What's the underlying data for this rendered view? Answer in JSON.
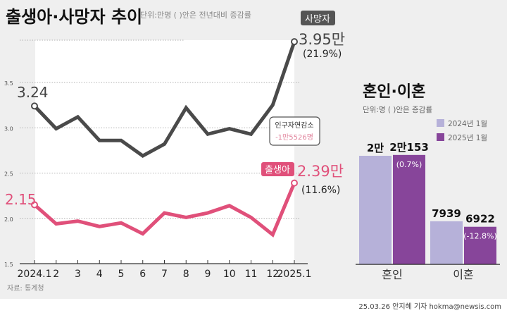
{
  "chart_data": [
    {
      "type": "line",
      "title": "출생아·사망자 추이",
      "subtitle": "단위:만명 ( )안은 전년대비 증감률",
      "x": [
        "2024.1",
        "2",
        "3",
        "4",
        "5",
        "6",
        "7",
        "8",
        "9",
        "10",
        "11",
        "12",
        "2025.1"
      ],
      "yticks": [
        "3.5",
        "3.0",
        "2.5",
        "2.0",
        "1.5"
      ],
      "ylim": [
        1.5,
        4.0
      ],
      "grid": true,
      "series": [
        {
          "name": "사망자",
          "color": "#4a4a4a",
          "values": [
            3.24,
            2.99,
            3.12,
            2.86,
            2.86,
            2.69,
            2.82,
            3.22,
            2.93,
            2.99,
            2.93,
            3.25,
            3.95
          ],
          "first_label": "3.24",
          "last_label": "3.95만",
          "last_change": "(21.9%)"
        },
        {
          "name": "출생아",
          "color": "#e0507a",
          "values": [
            2.15,
            1.94,
            1.97,
            1.91,
            1.95,
            1.83,
            2.06,
            2.01,
            2.06,
            2.14,
            2.01,
            1.82,
            2.39
          ],
          "first_label": "2.15",
          "last_label": "2.39만",
          "last_change": "(11.6%)"
        }
      ],
      "annotation": {
        "title": "인구자연감소",
        "value": "-1만5526명"
      },
      "source": "자료: 통계청"
    },
    {
      "type": "bar",
      "title": "혼인·이혼",
      "subtitle": "단위:명 ( )안은  증감률",
      "categories": [
        "혼인",
        "이혼"
      ],
      "legend_placement": "top-right",
      "series": [
        {
          "name": "2024년 1월",
          "color": "#b6b1d9",
          "values": [
            20000,
            7939
          ],
          "labels": [
            "2만",
            "7939"
          ]
        },
        {
          "name": "2025년 1월",
          "color": "#87459a",
          "values": [
            20153,
            6922
          ],
          "labels": [
            "2만153",
            "6922"
          ],
          "changes": [
            "(0.7%)",
            "(-12.8%)"
          ]
        }
      ]
    }
  ],
  "credit": "25.03.26 안지혜 기자  hokma@newsis.com"
}
